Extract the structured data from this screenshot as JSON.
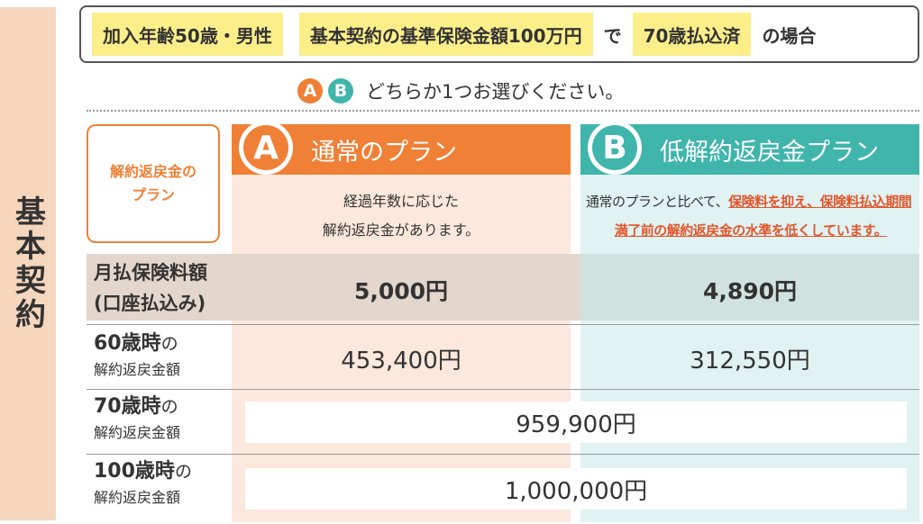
{
  "side_label": "基本契約",
  "conditions": {
    "age_gender": "加入年齢50歳・男性",
    "basic_amount": "基本契約の基準保険金額100万円",
    "connector": "で",
    "payment": "70歳払込済",
    "suffix": "の場合"
  },
  "choose": {
    "badge_a": "A",
    "badge_b": "B",
    "text": "どちらか1つお選びください。"
  },
  "colors": {
    "plan_a": "#ef8036",
    "plan_b": "#3fb5ac",
    "highlight": "#fcef8a",
    "emphasis_red": "#e2562c"
  },
  "refund_label": {
    "line1": "解約返戻金の",
    "line2": "プラン"
  },
  "plan_a": {
    "letter": "A",
    "title": "通常のプラン",
    "desc_line1": "経過年数に応じた",
    "desc_line2": "解約返戻金があります。"
  },
  "plan_b": {
    "letter": "B",
    "title": "低解約返戻金プラン",
    "desc_prefix": "通常のプランと比べて、",
    "desc_emph1": "保険料を抑え、保険料払込期間",
    "desc_emph2": "満了前の解約返戻金の水準を低くしています。"
  },
  "rows": {
    "premium": {
      "label1": "月払保険料額",
      "label2": "(口座払込み)",
      "value_a": "5,000円",
      "value_b": "4,890円"
    },
    "age60": {
      "label_age": "60歳時",
      "label_no": "の",
      "label_sub": "解約返戻金額",
      "value_a": "453,400円",
      "value_b": "312,550円"
    },
    "age70": {
      "label_age": "70歳時",
      "label_no": "の",
      "label_sub": "解約返戻金額",
      "value": "959,900円"
    },
    "age100": {
      "label_age": "100歳時",
      "label_no": "の",
      "label_sub": "解約返戻金額",
      "value": "1,000,000円"
    }
  }
}
